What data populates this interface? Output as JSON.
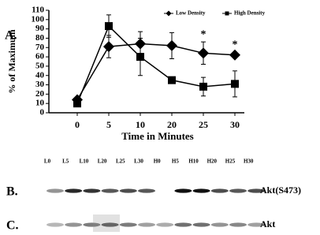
{
  "chart_data": {
    "type": "line",
    "panel": "A.",
    "ylabel": "% of Maximum",
    "xlabel": "Time in Minutes",
    "categories": [
      "0",
      "5",
      "10",
      "20",
      "25",
      "30"
    ],
    "series": [
      {
        "name": "Low Density",
        "marker": "diamond",
        "color": "#000000",
        "values": [
          14,
          71,
          74,
          72,
          64,
          62
        ],
        "errors": [
          2,
          12,
          13,
          14,
          12,
          3
        ]
      },
      {
        "name": "High Density",
        "marker": "square",
        "color": "#000000",
        "values": [
          10,
          93,
          60,
          35,
          28,
          31
        ],
        "errors": [
          2,
          12,
          20,
          3,
          10,
          14
        ]
      }
    ],
    "annotations": [
      {
        "text": "*",
        "category": "25"
      },
      {
        "text": "*",
        "category": "30"
      }
    ],
    "ylim": [
      0,
      110
    ],
    "yticks": [
      0,
      10,
      20,
      30,
      40,
      50,
      60,
      70,
      80,
      90,
      100,
      110
    ],
    "legend": "top-right",
    "grid": false
  },
  "blot": {
    "lanes": [
      "L0",
      "L5",
      "L10",
      "L20",
      "L25",
      "L30",
      "H0",
      "H5",
      "H10",
      "H20",
      "H25",
      "H30"
    ],
    "rows": [
      {
        "panel": "B.",
        "label": "Akt(S473)"
      },
      {
        "panel": "C.",
        "label": "Akt"
      }
    ]
  }
}
